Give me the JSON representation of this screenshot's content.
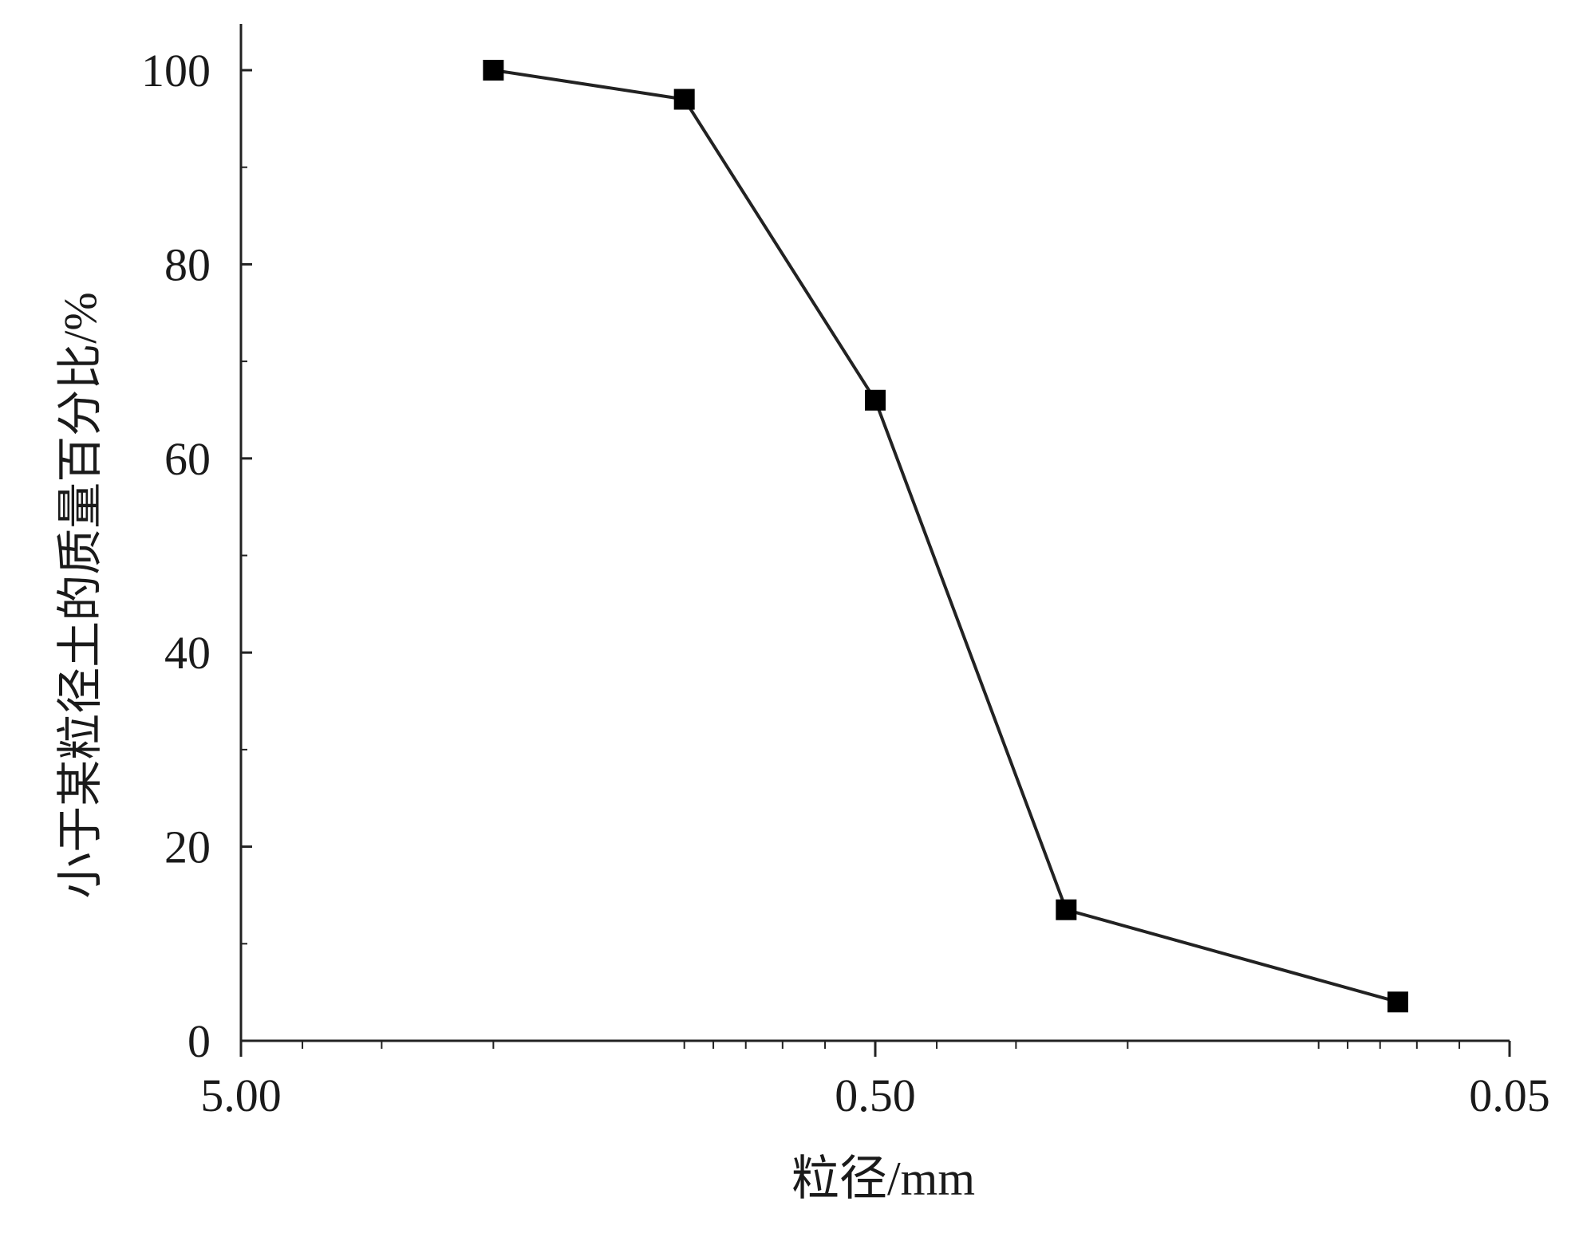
{
  "chart_data": {
    "type": "line",
    "title": "",
    "xlabel": "粒径/mm",
    "ylabel": "小于某粒径土的质量百分比/%",
    "x_scale": "log",
    "x_reversed": true,
    "xlim": [
      5.0,
      0.05
    ],
    "ylim": [
      0,
      100
    ],
    "x_ticks": [
      {
        "value": 5.0,
        "label": "5.00"
      },
      {
        "value": 0.5,
        "label": "0.50"
      },
      {
        "value": 0.05,
        "label": "0.05"
      }
    ],
    "y_ticks": [
      {
        "value": 0,
        "label": "0"
      },
      {
        "value": 20,
        "label": "20"
      },
      {
        "value": 40,
        "label": "40"
      },
      {
        "value": 60,
        "label": "60"
      },
      {
        "value": 80,
        "label": "80"
      },
      {
        "value": 100,
        "label": "100"
      }
    ],
    "y_minor_step": 10,
    "grid": false,
    "marker": "filled-square",
    "color": "#222222",
    "series": [
      {
        "x": [
          2.0,
          1.0,
          0.5,
          0.25,
          0.075
        ],
        "y": [
          100,
          97,
          66,
          13.5,
          4
        ]
      }
    ]
  }
}
